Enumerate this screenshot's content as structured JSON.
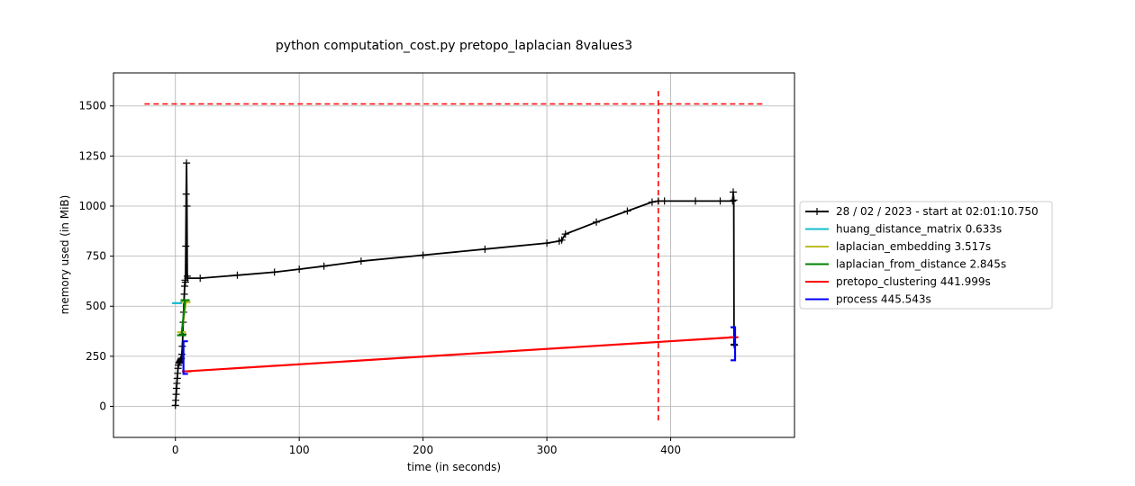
{
  "chart_data": {
    "type": "line",
    "title": "python computation_cost.py pretopo_laplacian 8values3",
    "xlabel": "time (in seconds)",
    "ylabel": "memory used (in MiB)",
    "xlim": [
      -50,
      500
    ],
    "ylim": [
      -155,
      1665
    ],
    "x_ticks": [
      0,
      100,
      200,
      300,
      400
    ],
    "x_tick_labels": [
      "0",
      "100",
      "200",
      "300",
      "400"
    ],
    "y_ticks": [
      0,
      250,
      500,
      750,
      1000,
      1250,
      1500
    ],
    "y_tick_labels": [
      "0",
      "250",
      "500",
      "750",
      "1000",
      "1250",
      "1500"
    ],
    "grid": true,
    "legend_position": "right, outside plot area",
    "memory_series": {
      "name": "28 / 02 / 2023 - start at 02:01:10.750",
      "color": "#000000",
      "marker": "+",
      "points": [
        [
          0,
          5
        ],
        [
          0.3,
          30
        ],
        [
          0.6,
          60
        ],
        [
          0.9,
          90
        ],
        [
          1.2,
          115
        ],
        [
          1.5,
          140
        ],
        [
          1.8,
          165
        ],
        [
          2.1,
          190
        ],
        [
          2.4,
          205
        ],
        [
          2.8,
          215
        ],
        [
          3.2,
          220
        ],
        [
          3.6,
          225
        ],
        [
          4.0,
          230
        ],
        [
          4.4,
          235
        ],
        [
          4.8,
          240
        ],
        [
          5.2,
          260
        ],
        [
          5.6,
          300
        ],
        [
          6.0,
          360
        ],
        [
          6.3,
          420
        ],
        [
          6.6,
          470
        ],
        [
          6.9,
          520
        ],
        [
          7.2,
          560
        ],
        [
          7.5,
          600
        ],
        [
          7.8,
          630
        ],
        [
          8.1,
          620
        ],
        [
          8.4,
          800
        ],
        [
          8.7,
          1060
        ],
        [
          9.0,
          1215
        ],
        [
          9.3,
          1000
        ],
        [
          9.6,
          650
        ],
        [
          10,
          640
        ],
        [
          20,
          640
        ],
        [
          50,
          655
        ],
        [
          80,
          670
        ],
        [
          100,
          685
        ],
        [
          120,
          700
        ],
        [
          150,
          725
        ],
        [
          200,
          755
        ],
        [
          250,
          785
        ],
        [
          300,
          815
        ],
        [
          310,
          825
        ],
        [
          312,
          830
        ],
        [
          315,
          860
        ],
        [
          340,
          920
        ],
        [
          365,
          975
        ],
        [
          385,
          1020
        ],
        [
          390,
          1025
        ],
        [
          395,
          1025
        ],
        [
          420,
          1025
        ],
        [
          440,
          1025
        ],
        [
          450,
          1025
        ],
        [
          450.5,
          1070
        ],
        [
          451,
          1030
        ],
        [
          451.2,
          310
        ],
        [
          451.5,
          305
        ]
      ]
    },
    "function_markers": [
      {
        "name": "huang_distance_matrix 0.633s",
        "color": "#17becf",
        "x_start": 1.0,
        "x_end": 1.633,
        "y_start": 515,
        "y_end": 515,
        "width": 10
      },
      {
        "name": "laplacian_embedding 3.517s",
        "color": "#bcbd22",
        "x_start": 5.0,
        "x_end": 8.517,
        "y_start": 370,
        "y_end": 520,
        "width": 10
      },
      {
        "name": "laplacian_from_distance 2.845s",
        "color": "#008000",
        "x_start": 5.0,
        "x_end": 7.845,
        "y_start": 355,
        "y_end": 530,
        "width": 10
      },
      {
        "name": "pretopo_clustering 441.999s",
        "color": "#ff0000",
        "x_start": 9.0,
        "x_end": 451.0,
        "y_start": 175,
        "y_end": 345,
        "width": 10
      },
      {
        "name": "process 445.543s",
        "color": "#0000ff",
        "x_start": 6.5,
        "x_end": 452.0,
        "y_start": 162,
        "y_end": 325,
        "y_start2": 230,
        "y_end2": 395,
        "width": 10
      }
    ],
    "max_memory_line": {
      "y": 1510,
      "x_range": [
        -25,
        475
      ],
      "color": "#ff0000",
      "style": "dashed"
    },
    "max_time_line": {
      "x": 390,
      "y_range": [
        -70,
        1580
      ],
      "color": "#ff0000",
      "style": "dashed"
    }
  },
  "legend": {
    "entries": [
      {
        "label": "28 / 02 / 2023 - start at 02:01:10.750",
        "color": "#000000",
        "marker": "+"
      },
      {
        "label": "huang_distance_matrix 0.633s",
        "color": "#17becf"
      },
      {
        "label": "laplacian_embedding 3.517s",
        "color": "#bcbd22"
      },
      {
        "label": "laplacian_from_distance 2.845s",
        "color": "#008000"
      },
      {
        "label": "pretopo_clustering 441.999s",
        "color": "#ff0000"
      },
      {
        "label": "process 445.543s",
        "color": "#0000ff"
      }
    ]
  }
}
